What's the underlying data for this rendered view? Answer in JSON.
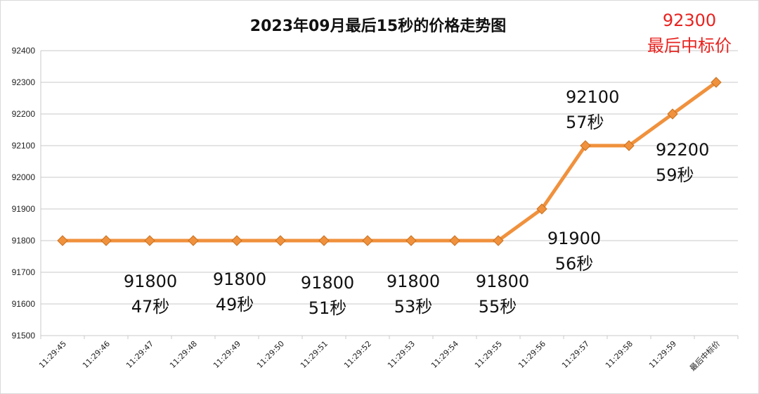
{
  "chart_data": {
    "type": "line",
    "title": "2023年09月最后15秒的价格走势图",
    "categories": [
      "11:29:45",
      "11:29:46",
      "11:29:47",
      "11:29:48",
      "11:29:49",
      "11:29:50",
      "11:29:51",
      "11:29:52",
      "11:29:53",
      "11:29:54",
      "11:29:55",
      "11:29:56",
      "11:29:57",
      "11:29:58",
      "11:29:59",
      "最后中标价"
    ],
    "values": [
      91800,
      91800,
      91800,
      91800,
      91800,
      91800,
      91800,
      91800,
      91800,
      91800,
      91800,
      91900,
      92100,
      92100,
      92200,
      92300
    ],
    "ylim": [
      91500,
      92400
    ],
    "yticks": [
      91500,
      91600,
      91700,
      91800,
      91900,
      92000,
      92100,
      92200,
      92300,
      92400
    ],
    "grid": true,
    "xlabel": "",
    "ylabel": "",
    "colors": {
      "line": "#f0913d",
      "marker": "#f0913d",
      "marker_edge": "#c9701e",
      "grid": "#c8c8c8",
      "final_label": "#e8231f"
    },
    "annotations": [
      {
        "id": "a47",
        "price": "91800",
        "time": "47秒"
      },
      {
        "id": "a49",
        "price": "91800",
        "time": "49秒"
      },
      {
        "id": "a51",
        "price": "91800",
        "time": "51秒"
      },
      {
        "id": "a53",
        "price": "91800",
        "time": "53秒"
      },
      {
        "id": "a55",
        "price": "91800",
        "time": "55秒"
      },
      {
        "id": "a56",
        "price": "91900",
        "time": "56秒"
      },
      {
        "id": "a57",
        "price": "92100",
        "time": "57秒"
      },
      {
        "id": "a59",
        "price": "92200",
        "time": "59秒"
      }
    ],
    "final_annotation": {
      "price": "92300",
      "label": "最后中标价"
    }
  }
}
